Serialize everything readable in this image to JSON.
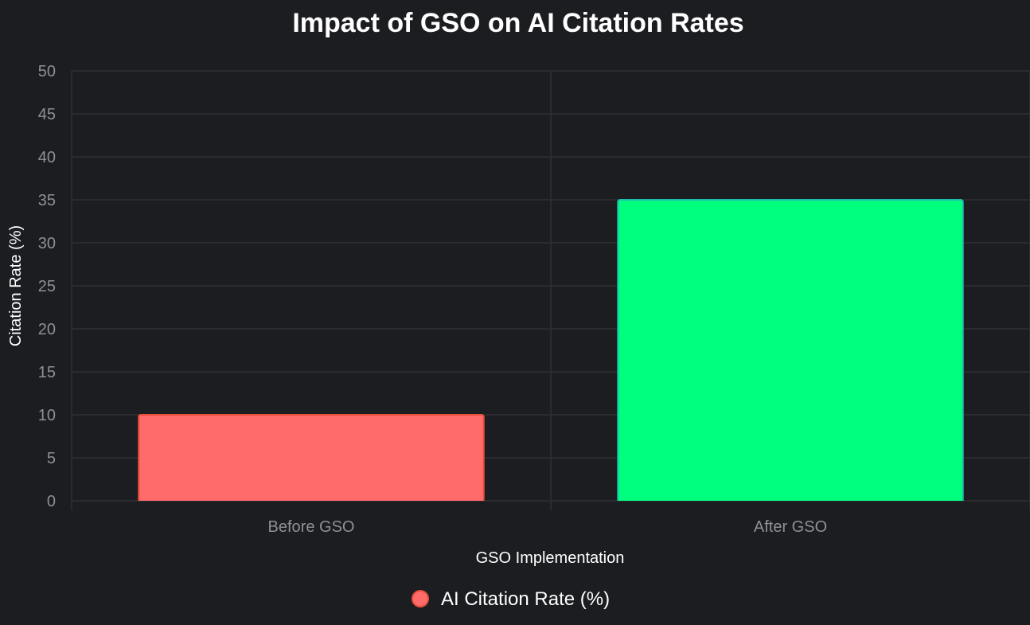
{
  "chart_data": {
    "type": "bar",
    "title": "Impact of GSO on AI Citation Rates",
    "xlabel": "GSO Implementation",
    "ylabel": "Citation Rate (%)",
    "categories": [
      "Before GSO",
      "After GSO"
    ],
    "series": [
      {
        "name": "AI Citation Rate (%)",
        "values": [
          10,
          35
        ],
        "colors": [
          "#ff6b6b",
          "#00ff7f"
        ],
        "border_colors": [
          "#e8503a",
          "#1fbfae"
        ]
      }
    ],
    "ylim": [
      0,
      50
    ],
    "yticks": [
      "0",
      "5",
      "10",
      "15",
      "20",
      "25",
      "30",
      "35",
      "40",
      "45",
      "50"
    ],
    "grid": true,
    "legend": {
      "position": "bottom",
      "marker_color": "#ff6b6b",
      "marker_border": "#e8503a"
    },
    "colors": {
      "background": "#1c1d21",
      "grid": "#2e2f34",
      "tick_text": "#8f9095",
      "text": "#ffffff"
    }
  }
}
